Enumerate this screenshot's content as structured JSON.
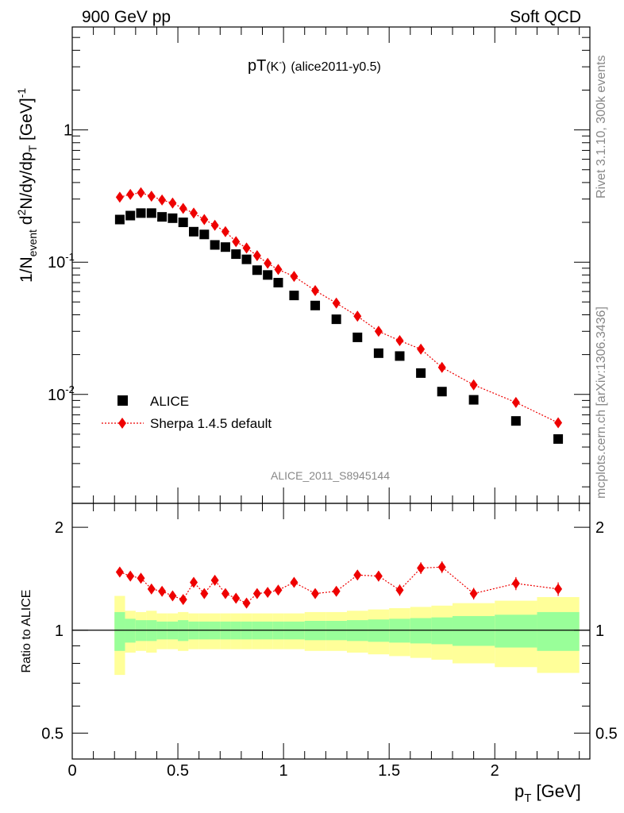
{
  "header": {
    "left": "900 GeV pp",
    "right": "Soft QCD"
  },
  "side_labels": {
    "rivet": "Rivet 3.1.10,  300k events",
    "mcplots": "mcplots.cern.ch [arXiv:1306.3436]"
  },
  "plot_title": {
    "main": "pT",
    "paren": "(K",
    "sup": "-",
    "close": ")",
    "tag": "(alice2011-y0.5)"
  },
  "analysis_label": "ALICE_2011_S8945144",
  "colors": {
    "data": "#000000",
    "mc": "#ee0000",
    "band_inner": "#99ff99",
    "band_outer": "#ffff99"
  },
  "chart_data": [
    {
      "type": "scatter",
      "y_scale": "log",
      "ylim": [
        0.0015,
        6
      ],
      "xlim": [
        0,
        2.45
      ],
      "ylabel": {
        "prefix": "1/N",
        "sub1": "event",
        "mid": " d",
        "sup1": "2",
        "rest": "N/dy/dp",
        "sub2": "T",
        "unit": " [GeV]",
        "sup2": "-1"
      },
      "y_ticks": [
        {
          "value": 1,
          "label": "1",
          "sup": ""
        },
        {
          "value": 0.1,
          "label": "10",
          "sup": "-1"
        },
        {
          "value": 0.01,
          "label": "10",
          "sup": "-2"
        }
      ],
      "series": [
        {
          "name": "ALICE",
          "marker": "square",
          "x": [
            0.225,
            0.275,
            0.325,
            0.375,
            0.425,
            0.475,
            0.525,
            0.575,
            0.625,
            0.675,
            0.725,
            0.775,
            0.825,
            0.875,
            0.925,
            0.975,
            1.05,
            1.15,
            1.25,
            1.35,
            1.45,
            1.55,
            1.65,
            1.75,
            1.9,
            2.1,
            2.3
          ],
          "values": [
            0.21,
            0.225,
            0.235,
            0.235,
            0.22,
            0.215,
            0.2,
            0.17,
            0.162,
            0.135,
            0.13,
            0.115,
            0.105,
            0.087,
            0.08,
            0.07,
            0.056,
            0.047,
            0.037,
            0.027,
            0.0205,
            0.0195,
            0.0145,
            0.0105,
            0.0091,
            0.0063,
            0.0046
          ]
        },
        {
          "name": "Sherpa 1.4.5 default",
          "marker": "diamond",
          "x": [
            0.225,
            0.275,
            0.325,
            0.375,
            0.425,
            0.475,
            0.525,
            0.575,
            0.625,
            0.675,
            0.725,
            0.775,
            0.825,
            0.875,
            0.925,
            0.975,
            1.05,
            1.15,
            1.25,
            1.35,
            1.45,
            1.55,
            1.65,
            1.75,
            1.9,
            2.1,
            2.3
          ],
          "values": [
            0.31,
            0.325,
            0.335,
            0.315,
            0.295,
            0.28,
            0.255,
            0.235,
            0.21,
            0.19,
            0.17,
            0.143,
            0.128,
            0.112,
            0.098,
            0.088,
            0.078,
            0.061,
            0.049,
            0.039,
            0.03,
            0.0255,
            0.022,
            0.016,
            0.0118,
            0.0087,
            0.0061
          ]
        }
      ]
    },
    {
      "type": "scatter",
      "y_scale": "log",
      "ylabel": "Ratio to ALICE",
      "ylim": [
        0.42,
        2.35
      ],
      "xlim": [
        0,
        2.45
      ],
      "xlabel": {
        "main": "p",
        "sub": "T",
        "unit": " [GeV]"
      },
      "x_ticks": [
        {
          "value": 0,
          "label": "0"
        },
        {
          "value": 0.5,
          "label": "0.5"
        },
        {
          "value": 1,
          "label": "1"
        },
        {
          "value": 1.5,
          "label": "1.5"
        },
        {
          "value": 2,
          "label": "2"
        }
      ],
      "y_ticks": [
        {
          "value": 0.5,
          "label": "0.5"
        },
        {
          "value": 1,
          "label": "1"
        },
        {
          "value": 2,
          "label": "2"
        }
      ],
      "bins": [
        [
          0.2,
          0.25
        ],
        [
          0.25,
          0.3
        ],
        [
          0.3,
          0.35
        ],
        [
          0.35,
          0.4
        ],
        [
          0.4,
          0.45
        ],
        [
          0.45,
          0.5
        ],
        [
          0.5,
          0.55
        ],
        [
          0.55,
          0.6
        ],
        [
          0.6,
          0.65
        ],
        [
          0.65,
          0.7
        ],
        [
          0.7,
          0.75
        ],
        [
          0.75,
          0.8
        ],
        [
          0.8,
          0.85
        ],
        [
          0.85,
          0.9
        ],
        [
          0.9,
          0.95
        ],
        [
          0.95,
          1.0
        ],
        [
          1.0,
          1.1
        ],
        [
          1.1,
          1.2
        ],
        [
          1.2,
          1.3
        ],
        [
          1.3,
          1.4
        ],
        [
          1.4,
          1.5
        ],
        [
          1.5,
          1.6
        ],
        [
          1.6,
          1.7
        ],
        [
          1.7,
          1.8
        ],
        [
          1.8,
          2.0
        ],
        [
          2.0,
          2.2
        ],
        [
          2.2,
          2.4
        ]
      ],
      "band_outer": [
        0.26,
        0.14,
        0.13,
        0.14,
        0.12,
        0.12,
        0.13,
        0.12,
        0.12,
        0.12,
        0.12,
        0.12,
        0.12,
        0.12,
        0.12,
        0.12,
        0.12,
        0.13,
        0.13,
        0.14,
        0.15,
        0.16,
        0.17,
        0.18,
        0.2,
        0.22,
        0.25
      ],
      "band_inner": [
        0.13,
        0.08,
        0.07,
        0.07,
        0.06,
        0.06,
        0.07,
        0.06,
        0.06,
        0.06,
        0.06,
        0.06,
        0.06,
        0.06,
        0.06,
        0.06,
        0.06,
        0.065,
        0.065,
        0.07,
        0.075,
        0.08,
        0.085,
        0.09,
        0.1,
        0.11,
        0.13
      ],
      "series": [
        {
          "name": "Sherpa 1.4.5 default",
          "x": [
            0.225,
            0.275,
            0.325,
            0.375,
            0.425,
            0.475,
            0.525,
            0.575,
            0.625,
            0.675,
            0.725,
            0.775,
            0.825,
            0.875,
            0.925,
            0.975,
            1.05,
            1.15,
            1.25,
            1.35,
            1.45,
            1.55,
            1.65,
            1.75,
            1.9,
            2.1,
            2.3
          ],
          "values": [
            1.48,
            1.44,
            1.42,
            1.32,
            1.3,
            1.26,
            1.23,
            1.38,
            1.28,
            1.4,
            1.28,
            1.24,
            1.2,
            1.28,
            1.29,
            1.31,
            1.38,
            1.28,
            1.3,
            1.45,
            1.44,
            1.31,
            1.52,
            1.53,
            1.28,
            1.37,
            1.32
          ],
          "errors": [
            0.03,
            0.03,
            0.03,
            0.03,
            0.03,
            0.03,
            0.03,
            0.03,
            0.03,
            0.03,
            0.03,
            0.03,
            0.03,
            0.03,
            0.03,
            0.03,
            0.03,
            0.03,
            0.03,
            0.04,
            0.05,
            0.05,
            0.06,
            0.06,
            0.05,
            0.06,
            0.06
          ]
        }
      ]
    }
  ]
}
